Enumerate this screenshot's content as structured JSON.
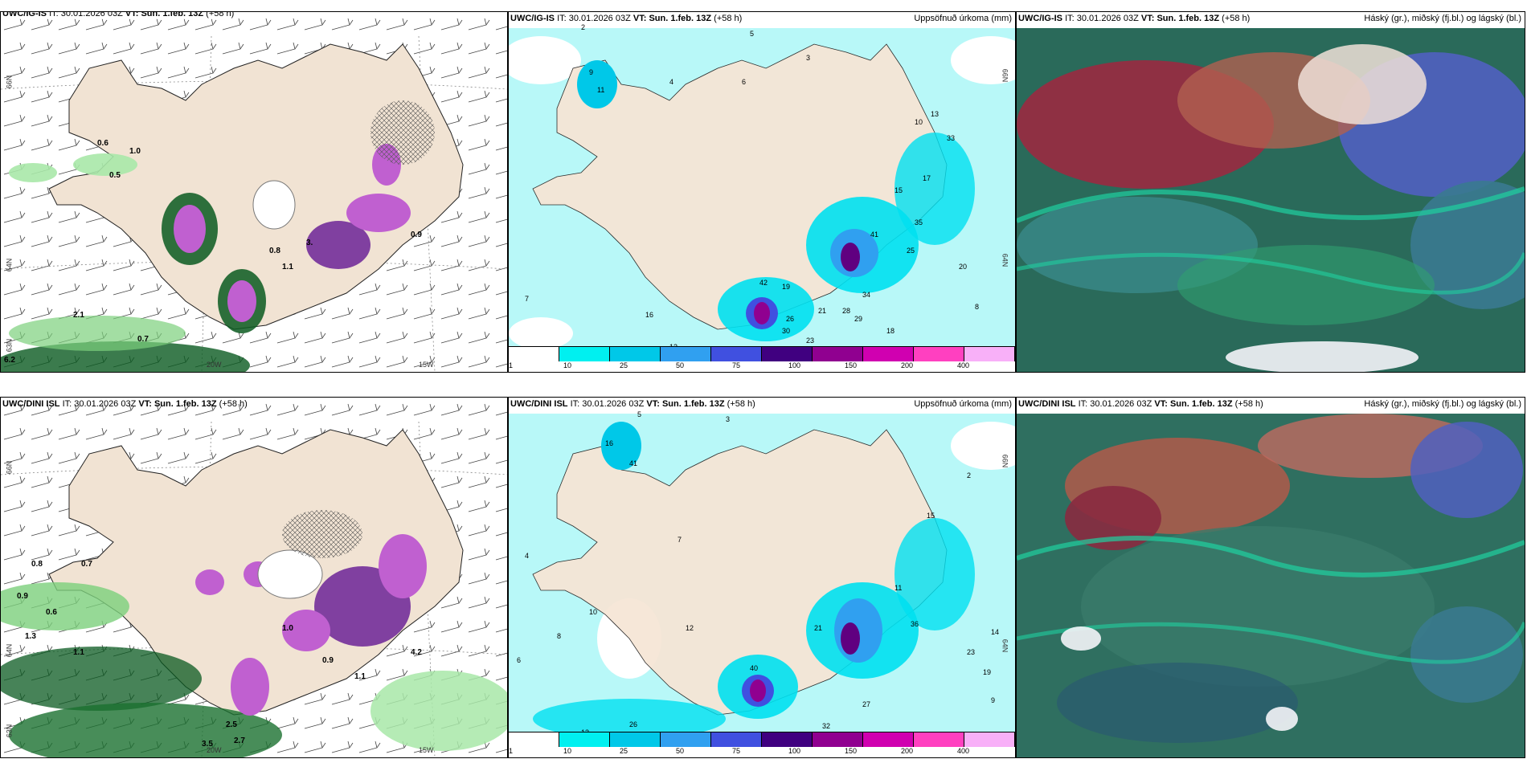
{
  "panels": [
    {
      "model": "UWC/IG-IS",
      "it_label": "IT:",
      "it_value": "30.01.2026 03Z",
      "vt_label": "VT:",
      "vt_value": "Sun. 1.feb. 13Z",
      "lead": "(+58 h)",
      "right_title": "",
      "lat_labels": [
        "66N",
        "64N",
        "63N"
      ],
      "lon_labels": [
        "20W",
        "15W"
      ]
    },
    {
      "model": "UWC/IG-IS",
      "it_label": "IT:",
      "it_value": "30.01.2026 03Z",
      "vt_label": "VT:",
      "vt_value": "Sun. 1.feb. 13Z",
      "lead": "(+58 h)",
      "right_title": "Uppsöfnuð úrkoma (mm)",
      "lat_labels": [
        "66N",
        "64N"
      ],
      "lon_labels": []
    },
    {
      "model": "UWC/IG-IS",
      "it_label": "IT:",
      "it_value": "30.01.2026 03Z",
      "vt_label": "VT:",
      "vt_value": "Sun. 1.feb. 13Z",
      "lead": "(+58 h)",
      "right_title": "Háský (gr.), miðský (fj.bl.) og lágský (bl.)",
      "lat_labels": [],
      "lon_labels": []
    },
    {
      "model": "UWC/DINI ISL",
      "it_label": "IT:",
      "it_value": "30.01.2026 03Z",
      "vt_label": "VT:",
      "vt_value": "Sun. 1.feb. 13Z",
      "lead": "(+58 h)",
      "right_title": "",
      "lat_labels": [
        "66N",
        "64N",
        "63N"
      ],
      "lon_labels": [
        "20W",
        "15W"
      ]
    },
    {
      "model": "UWC/DINI ISL",
      "it_label": "IT:",
      "it_value": "30.01.2026 03Z",
      "vt_label": "VT:",
      "vt_value": "Sun. 1.feb. 13Z",
      "lead": "(+58 h)",
      "right_title": "Uppsöfnuð úrkoma (mm)",
      "lat_labels": [
        "66N",
        "64N"
      ],
      "lon_labels": []
    },
    {
      "model": "UWC/DINI ISL",
      "it_label": "IT:",
      "it_value": "30.01.2026 03Z",
      "vt_label": "VT:",
      "vt_value": "Sun. 1.feb. 13Z",
      "lead": "(+58 h)",
      "right_title": "Háský (gr.), miðský (fj.bl.) og lágský (bl.)",
      "lat_labels": [],
      "lon_labels": []
    }
  ],
  "precip_colorbar": {
    "colors": [
      "#ffffff",
      "#00f0f0",
      "#00c8e8",
      "#30a0f0",
      "#4050e0",
      "#400080",
      "#900090",
      "#d000b0",
      "#ff40c0",
      "#f8b0f8"
    ],
    "ticks": [
      "1",
      "10",
      "25",
      "50",
      "75",
      "100",
      "150",
      "200",
      "400"
    ]
  },
  "precip_numbers_top": [
    "2",
    "5",
    "3",
    "6",
    "4",
    "9",
    "11",
    "7",
    "12",
    "42",
    "19",
    "26",
    "30",
    "23",
    "21",
    "28",
    "29",
    "34",
    "16",
    "15",
    "33",
    "13",
    "20",
    "18",
    "41",
    "35",
    "25",
    "17",
    "10",
    "8"
  ],
  "precip_numbers_bottom": [
    "5",
    "3",
    "16",
    "41",
    "10",
    "13",
    "6",
    "4",
    "8",
    "12",
    "21",
    "26",
    "27",
    "32",
    "36",
    "23",
    "19",
    "14",
    "11",
    "9",
    "2",
    "7",
    "15",
    "40"
  ],
  "snow_values_top": [
    "0.6",
    "1.0",
    "0.5",
    "0.8",
    "1.1",
    "0.7",
    "0.9",
    "3.",
    "6.2",
    "2.1"
  ],
  "snow_values_bottom": [
    "0.8",
    "0.6",
    "1.1",
    "0.7",
    "0.9",
    "1.0",
    "1.1",
    "2.5",
    "3.5",
    "2.7",
    "4.2",
    "1.3",
    "0.9"
  ]
}
